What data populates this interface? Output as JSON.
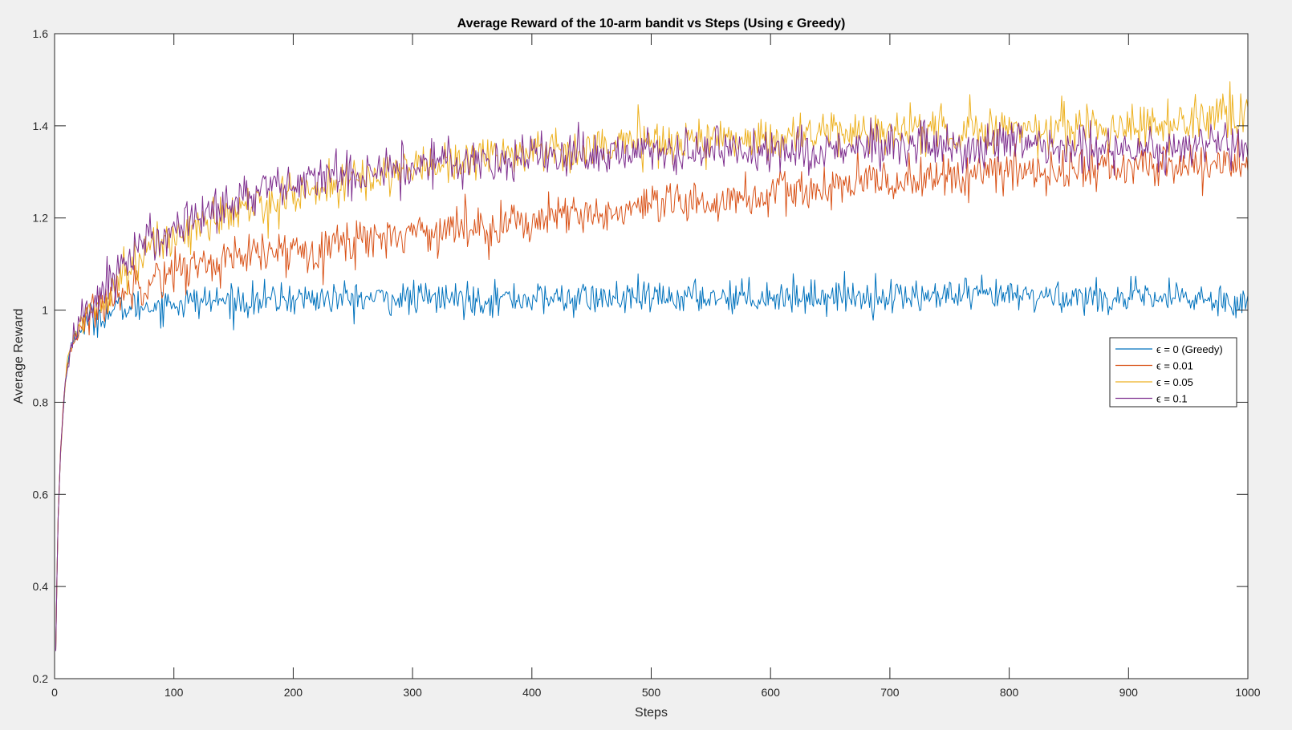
{
  "figure": {
    "background": "#f0f0f0",
    "axes_background": "#ffffff"
  },
  "chart_data": {
    "type": "line",
    "title": "Average Reward of the 10-arm bandit vs Steps (Using ϵ Greedy)",
    "xlabel": "Steps",
    "ylabel": "Average Reward",
    "xlim": [
      0,
      1000
    ],
    "ylim": [
      0.2,
      1.6
    ],
    "xticks": [
      0,
      100,
      200,
      300,
      400,
      500,
      600,
      700,
      800,
      900,
      1000
    ],
    "yticks": [
      0.2,
      0.4,
      0.6,
      0.8,
      1,
      1.2,
      1.4,
      1.6
    ],
    "xtick_labels": [
      "0",
      "100",
      "200",
      "300",
      "400",
      "500",
      "600",
      "700",
      "800",
      "900",
      "1000"
    ],
    "ytick_labels": [
      "0.2",
      "0.4",
      "0.6",
      "0.8",
      "1",
      "1.2",
      "1.4",
      "1.6"
    ],
    "grid": false,
    "legend_position": "right, middle",
    "x": [
      1,
      2,
      3,
      5,
      8,
      10,
      15,
      20,
      30,
      40,
      50,
      60,
      80,
      100,
      125,
      150,
      175,
      200,
      250,
      300,
      350,
      400,
      450,
      500,
      550,
      600,
      650,
      700,
      750,
      800,
      850,
      900,
      950,
      1000
    ],
    "series": [
      {
        "name": "ϵ = 0 (Greedy)",
        "color": "#0072bd",
        "values": [
          0.26,
          0.42,
          0.55,
          0.69,
          0.81,
          0.87,
          0.93,
          0.96,
          0.98,
          0.99,
          1.0,
          1.005,
          1.01,
          1.015,
          1.02,
          1.02,
          1.02,
          1.025,
          1.025,
          1.025,
          1.025,
          1.025,
          1.025,
          1.025,
          1.03,
          1.03,
          1.03,
          1.03,
          1.03,
          1.03,
          1.03,
          1.025,
          1.025,
          1.02
        ]
      },
      {
        "name": "ϵ = 0.01",
        "color": "#d95319",
        "values": [
          0.26,
          0.42,
          0.55,
          0.69,
          0.81,
          0.87,
          0.93,
          0.96,
          0.99,
          1.01,
          1.03,
          1.045,
          1.07,
          1.085,
          1.1,
          1.11,
          1.12,
          1.13,
          1.15,
          1.17,
          1.18,
          1.195,
          1.205,
          1.22,
          1.235,
          1.25,
          1.265,
          1.28,
          1.29,
          1.3,
          1.305,
          1.31,
          1.315,
          1.32
        ]
      },
      {
        "name": "ϵ = 0.05",
        "color": "#edb120",
        "values": [
          0.26,
          0.42,
          0.55,
          0.69,
          0.81,
          0.87,
          0.93,
          0.97,
          1.0,
          1.03,
          1.06,
          1.09,
          1.13,
          1.16,
          1.19,
          1.21,
          1.23,
          1.25,
          1.28,
          1.31,
          1.33,
          1.345,
          1.355,
          1.365,
          1.37,
          1.375,
          1.385,
          1.39,
          1.39,
          1.395,
          1.395,
          1.4,
          1.41,
          1.42
        ]
      },
      {
        "name": "ϵ = 0.1",
        "color": "#7e2f8e",
        "values": [
          0.26,
          0.42,
          0.55,
          0.69,
          0.81,
          0.87,
          0.93,
          0.97,
          1.01,
          1.04,
          1.08,
          1.11,
          1.15,
          1.18,
          1.21,
          1.24,
          1.26,
          1.27,
          1.3,
          1.315,
          1.325,
          1.335,
          1.34,
          1.345,
          1.345,
          1.35,
          1.35,
          1.35,
          1.355,
          1.355,
          1.35,
          1.355,
          1.355,
          1.355
        ]
      }
    ]
  }
}
